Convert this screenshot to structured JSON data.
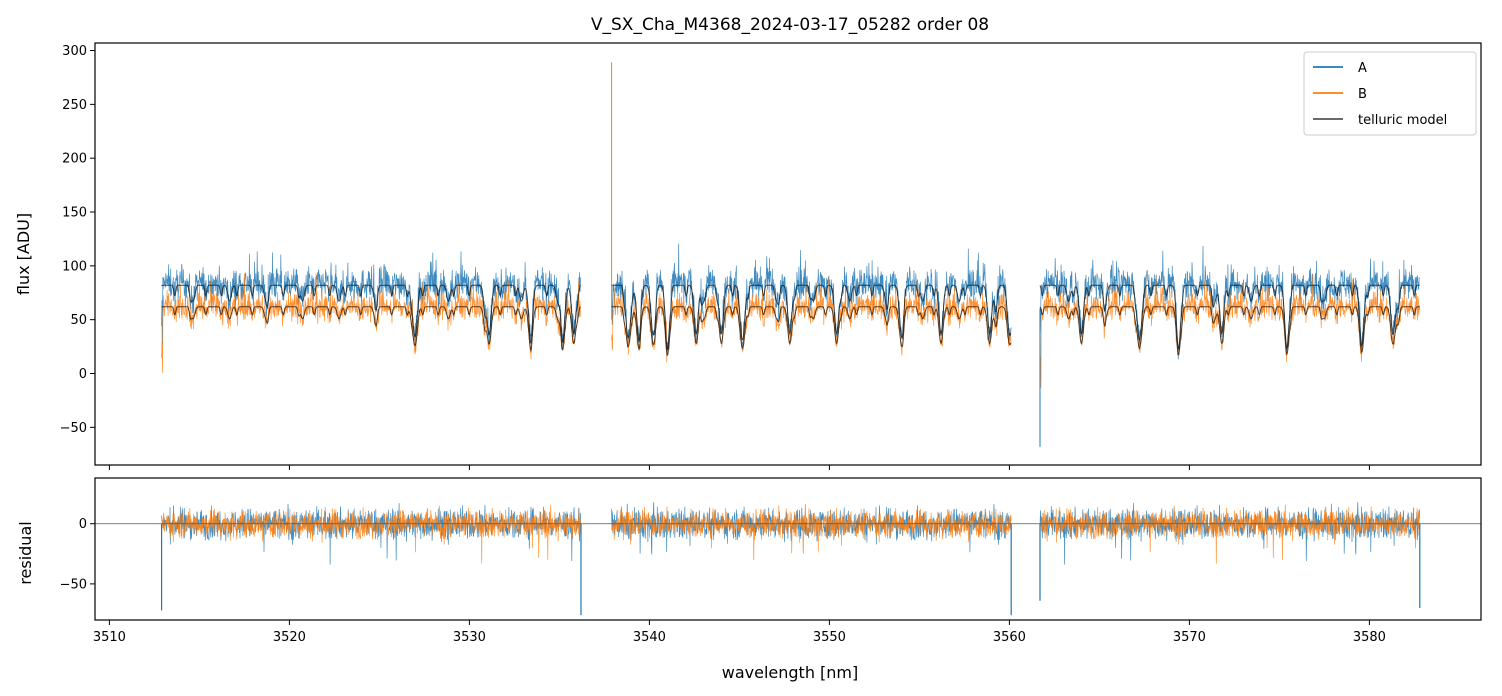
{
  "chart_data": [
    {
      "type": "line",
      "panel": "top",
      "title": "V_SX_Cha_M4368_2024-03-17_05282  order 08",
      "xlabel": "",
      "ylabel": "flux [ADU]",
      "xlim": [
        3509.2,
        3586.2
      ],
      "ylim": [
        -85,
        307
      ],
      "x_ticks": [
        3510,
        3520,
        3530,
        3540,
        3550,
        3560,
        3570,
        3580
      ],
      "y_ticks": [
        -50,
        0,
        50,
        100,
        150,
        200,
        250,
        300
      ],
      "y_tick_labels": [
        "−50",
        "0",
        "50",
        "100",
        "150",
        "200",
        "250",
        "300"
      ],
      "legend_position": "top-right",
      "series": [
        {
          "name": "A",
          "color": "#1f77b4",
          "level": 84,
          "noise": 11,
          "segments": [
            [
              3512.9,
              3536.2
            ],
            [
              3537.9,
              3560.1
            ],
            [
              3561.7,
              3582.8
            ]
          ]
        },
        {
          "name": "B",
          "color": "#ff7f0e",
          "level": 63,
          "noise": 9,
          "segments": [
            [
              3512.9,
              3536.2
            ],
            [
              3537.9,
              3560.1
            ],
            [
              3561.7,
              3582.8
            ]
          ]
        },
        {
          "name": "telluric model",
          "color": "#555555",
          "levels": [
            82,
            62
          ],
          "segments": [
            [
              3512.9,
              3536.2
            ],
            [
              3537.9,
              3560.1
            ],
            [
              3561.7,
              3582.8
            ]
          ]
        }
      ],
      "features": {
        "spike_B": {
          "x": 3537.9,
          "y": 289
        },
        "absorption_lines_nm": [
          3527.0,
          3531.1,
          3533.4,
          3535.2,
          3535.8,
          3538.8,
          3539.4,
          3540.2,
          3541.0,
          3542.6,
          3544.0,
          3545.2,
          3547.8,
          3550.4,
          3554.0,
          3556.2,
          3558.9,
          3560.0,
          3564.0,
          3567.2,
          3569.4,
          3571.8,
          3575.4,
          3579.6,
          3581.3
        ],
        "min_A": {
          "x": 3561.7,
          "y": -68
        }
      }
    },
    {
      "type": "line",
      "panel": "bottom",
      "xlabel": "wavelength [nm]",
      "ylabel": "residual",
      "xlim": [
        3509.2,
        3586.2
      ],
      "ylim": [
        -80,
        38
      ],
      "x_ticks": [
        3510,
        3520,
        3530,
        3540,
        3550,
        3560,
        3570,
        3580
      ],
      "y_ticks": [
        -50,
        0
      ],
      "y_tick_labels": [
        "−50",
        "0"
      ],
      "series": [
        {
          "name": "A",
          "color": "#1f77b4",
          "level": 0,
          "noise": 12
        },
        {
          "name": "B",
          "color": "#ff7f0e",
          "level": 0,
          "noise": 11
        }
      ],
      "zero_line": 0,
      "edge_spikes": [
        {
          "x": 3512.9,
          "y": -72
        },
        {
          "x": 3536.2,
          "y": -76
        },
        {
          "x": 3560.1,
          "y": -76
        },
        {
          "x": 3561.7,
          "y": -64
        },
        {
          "x": 3582.8,
          "y": -70
        }
      ]
    }
  ]
}
